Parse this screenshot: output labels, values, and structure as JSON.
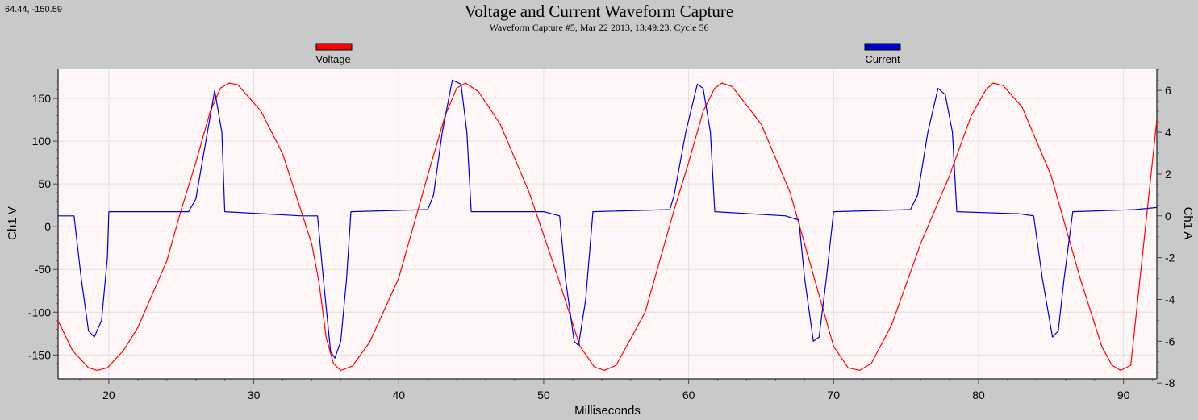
{
  "coordinate_readout": "64.44, -150.59",
  "chart_data": {
    "type": "line",
    "title": "Voltage and Current Waveform Capture",
    "subtitle": "Waveform Capture #5, Mar 22 2013, 13:49:23,  Cycle 56",
    "xlabel": "Milliseconds",
    "ylabel": "Ch1 V",
    "y2label": "Ch1 A",
    "xlim": [
      16.5,
      92.3
    ],
    "ylim": [
      -178,
      185
    ],
    "y2lim": [
      -7.8,
      7.05
    ],
    "x_ticks": [
      20,
      30,
      40,
      50,
      60,
      70,
      80,
      90
    ],
    "y_ticks": [
      -150,
      -100,
      -50,
      0,
      50,
      100,
      150
    ],
    "y2_ticks": [
      -8,
      -6,
      -4,
      -2,
      0,
      2,
      4,
      6
    ],
    "grid": true,
    "legend_position": "top",
    "series": [
      {
        "name": "Voltage",
        "color": "#ff0000",
        "axis": "left",
        "points": [
          [
            16.5,
            -110
          ],
          [
            17.5,
            -145
          ],
          [
            18.6,
            -165
          ],
          [
            19.2,
            -168
          ],
          [
            19.9,
            -165
          ],
          [
            21,
            -145
          ],
          [
            22,
            -118
          ],
          [
            24,
            -40
          ],
          [
            25,
            20
          ],
          [
            26,
            75
          ],
          [
            27,
            135
          ],
          [
            27.7,
            162
          ],
          [
            28.3,
            168
          ],
          [
            28.9,
            166
          ],
          [
            30.5,
            135
          ],
          [
            32,
            85
          ],
          [
            34,
            -20
          ],
          [
            34.5,
            -65
          ],
          [
            35,
            -130
          ],
          [
            35.5,
            -160
          ],
          [
            36,
            -168
          ],
          [
            36.8,
            -163
          ],
          [
            38,
            -135
          ],
          [
            40,
            -60
          ],
          [
            42,
            60
          ],
          [
            43.2,
            130
          ],
          [
            44,
            162
          ],
          [
            44.6,
            168
          ],
          [
            45.5,
            158
          ],
          [
            47,
            120
          ],
          [
            49,
            40
          ],
          [
            51,
            -60
          ],
          [
            52.5,
            -140
          ],
          [
            53.5,
            -164
          ],
          [
            54.2,
            -168
          ],
          [
            55,
            -162
          ],
          [
            57,
            -100
          ],
          [
            59,
            20
          ],
          [
            60,
            75
          ],
          [
            61,
            135
          ],
          [
            61.8,
            162
          ],
          [
            62.3,
            168
          ],
          [
            63,
            164
          ],
          [
            65,
            120
          ],
          [
            67,
            40
          ],
          [
            69,
            -80
          ],
          [
            70,
            -140
          ],
          [
            71,
            -165
          ],
          [
            71.8,
            -168
          ],
          [
            72.6,
            -160
          ],
          [
            74,
            -115
          ],
          [
            76,
            -20
          ],
          [
            78,
            60
          ],
          [
            79.5,
            130
          ],
          [
            80.5,
            160
          ],
          [
            81,
            168
          ],
          [
            81.7,
            165
          ],
          [
            83,
            140
          ],
          [
            85,
            60
          ],
          [
            87,
            -60
          ],
          [
            88.5,
            -140
          ],
          [
            89.2,
            -162
          ],
          [
            89.8,
            -168
          ],
          [
            90.5,
            -162
          ],
          [
            92.3,
            125
          ]
        ]
      },
      {
        "name": "Current",
        "color": "#0000cc",
        "axis": "right",
        "points": [
          [
            16.5,
            0
          ],
          [
            17.6,
            0
          ],
          [
            18.1,
            -3
          ],
          [
            18.6,
            -5.5
          ],
          [
            19.0,
            -5.8
          ],
          [
            19.5,
            -5
          ],
          [
            19.9,
            -2
          ],
          [
            20.0,
            0.2
          ],
          [
            25.5,
            0.2
          ],
          [
            26.0,
            0.8
          ],
          [
            26.8,
            4
          ],
          [
            27.3,
            6
          ],
          [
            27.8,
            4
          ],
          [
            28.0,
            0.2
          ],
          [
            33.3,
            0
          ],
          [
            34.4,
            0
          ],
          [
            34.8,
            -3
          ],
          [
            35.3,
            -6.5
          ],
          [
            35.6,
            -6.8
          ],
          [
            36.0,
            -6
          ],
          [
            36.4,
            -3
          ],
          [
            36.7,
            0.2
          ],
          [
            42.0,
            0.3
          ],
          [
            42.4,
            1
          ],
          [
            43.0,
            4
          ],
          [
            43.7,
            6.5
          ],
          [
            44.3,
            6.3
          ],
          [
            44.7,
            4
          ],
          [
            45.0,
            0.2
          ],
          [
            50.0,
            0.2
          ],
          [
            51.1,
            0
          ],
          [
            51.5,
            -3
          ],
          [
            52.1,
            -6
          ],
          [
            52.4,
            -6.2
          ],
          [
            52.9,
            -4
          ],
          [
            53.4,
            0.2
          ],
          [
            58.7,
            0.3
          ],
          [
            59.0,
            1
          ],
          [
            59.8,
            4
          ],
          [
            60.6,
            6.3
          ],
          [
            61.0,
            6.1
          ],
          [
            61.5,
            4
          ],
          [
            61.8,
            0.2
          ],
          [
            66.7,
            0
          ],
          [
            67.6,
            -0.2
          ],
          [
            68.0,
            -3
          ],
          [
            68.6,
            -6
          ],
          [
            69.0,
            -5.8
          ],
          [
            69.5,
            -3
          ],
          [
            70.0,
            0.2
          ],
          [
            75.3,
            0.3
          ],
          [
            75.8,
            1
          ],
          [
            76.5,
            4
          ],
          [
            77.2,
            6.1
          ],
          [
            77.7,
            5.8
          ],
          [
            78.2,
            4
          ],
          [
            78.5,
            0.2
          ],
          [
            82.8,
            0.1
          ],
          [
            83.8,
            0
          ],
          [
            84.4,
            -3
          ],
          [
            85.1,
            -5.8
          ],
          [
            85.5,
            -5.5
          ],
          [
            85.9,
            -3
          ],
          [
            86.5,
            0.2
          ],
          [
            90.8,
            0.3
          ],
          [
            92.3,
            0.4
          ]
        ]
      }
    ]
  }
}
